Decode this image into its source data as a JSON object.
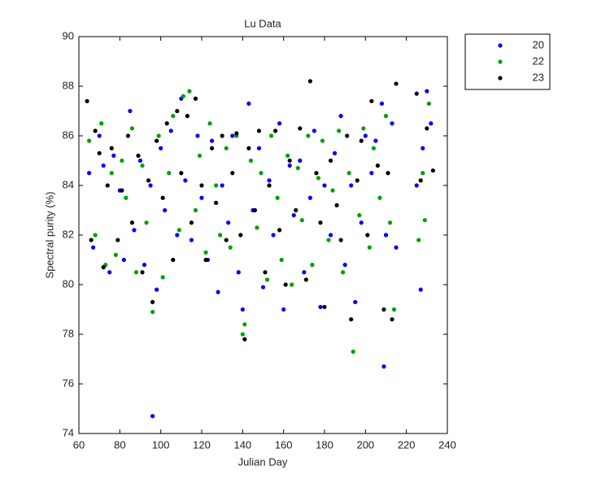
{
  "chart_data": {
    "type": "scatter",
    "title": "Lu Data",
    "x_label": "Julian Day",
    "y_label": "Spectral purity (%)",
    "xlim": [
      60,
      240
    ],
    "ylim": [
      74,
      90
    ],
    "xticks": [
      60,
      80,
      100,
      120,
      140,
      160,
      180,
      200,
      220,
      240
    ],
    "yticks": [
      74,
      76,
      78,
      80,
      82,
      84,
      86,
      88,
      90
    ],
    "grid": false,
    "legend_loc": "northeastoutside",
    "series": [
      {
        "name": "20",
        "color": "#0000ff",
        "x": [
          65,
          67,
          70,
          72,
          75,
          77,
          80,
          82,
          85,
          87,
          90,
          92,
          95,
          96,
          98,
          100,
          102,
          105,
          108,
          110,
          112,
          115,
          118,
          120,
          123,
          125,
          128,
          130,
          133,
          135,
          138,
          140,
          143,
          145,
          148,
          150,
          153,
          155,
          158,
          160,
          163,
          165,
          168,
          170,
          173,
          175,
          178,
          180,
          183,
          185,
          188,
          190,
          193,
          195,
          198,
          200,
          203,
          205,
          208,
          209,
          210,
          213,
          215,
          225,
          227,
          228,
          230,
          232
        ],
        "values": [
          84.5,
          81.5,
          86,
          84.8,
          80.5,
          85.2,
          83.8,
          81,
          87,
          82.2,
          85,
          80.8,
          84,
          74.7,
          79.8,
          85.5,
          83,
          86.2,
          82,
          87.5,
          84.2,
          81.8,
          86,
          83.5,
          81,
          85.8,
          79.7,
          84,
          82.5,
          86,
          80.5,
          79,
          87.3,
          83,
          85.5,
          79.9,
          84.2,
          82,
          86.5,
          79,
          84.8,
          82.8,
          85,
          80.5,
          83.5,
          86.2,
          79.1,
          84,
          82,
          85.3,
          86.8,
          80.8,
          84,
          79.3,
          82.5,
          86,
          84.5,
          85.8,
          87.3,
          76.7,
          82,
          86.5,
          81.5,
          84,
          79.8,
          85.5,
          87.8,
          86.5
        ]
      },
      {
        "name": "22",
        "color": "#00a000",
        "x": [
          65,
          68,
          71,
          73,
          76,
          78,
          81,
          83,
          86,
          88,
          91,
          93,
          96,
          99,
          101,
          104,
          106,
          109,
          111,
          114,
          117,
          119,
          122,
          124,
          127,
          129,
          132,
          134,
          137,
          140,
          141,
          144,
          147,
          149,
          152,
          154,
          157,
          159,
          162,
          164,
          167,
          169,
          172,
          174,
          177,
          179,
          182,
          184,
          187,
          189,
          192,
          194,
          197,
          199,
          202,
          204,
          207,
          210,
          212,
          214,
          226,
          228,
          229,
          231
        ],
        "values": [
          85.8,
          82,
          86.5,
          80.8,
          84.5,
          81.2,
          85,
          83.5,
          86.3,
          80.5,
          84.8,
          82.5,
          78.9,
          86,
          80.3,
          84.5,
          86.8,
          82.2,
          87.6,
          87.8,
          83,
          85.2,
          81.3,
          86.5,
          84,
          82,
          85.5,
          81.5,
          86,
          78,
          78.4,
          85,
          82.3,
          84.5,
          80.2,
          86,
          83.5,
          81,
          85.2,
          80,
          84.7,
          82.6,
          86,
          80.8,
          84.3,
          85.8,
          81.8,
          83.8,
          86.2,
          80.5,
          84.5,
          77.3,
          82.8,
          86.3,
          81.5,
          85.5,
          83.5,
          86.8,
          82.5,
          79,
          81.8,
          84.5,
          82.6,
          87.3
        ]
      },
      {
        "name": "23",
        "color": "#000000",
        "x": [
          64,
          66,
          68,
          70,
          72,
          74,
          76,
          79,
          81,
          84,
          86,
          89,
          91,
          94,
          96,
          98,
          101,
          103,
          106,
          108,
          110,
          113,
          115,
          117,
          120,
          122,
          125,
          127,
          130,
          132,
          135,
          137,
          139,
          141,
          143,
          146,
          148,
          151,
          153,
          156,
          158,
          161,
          163,
          166,
          168,
          171,
          173,
          176,
          178,
          180,
          183,
          186,
          188,
          191,
          193,
          196,
          198,
          201,
          203,
          206,
          209,
          211,
          213,
          215,
          225,
          227,
          230,
          233
        ],
        "values": [
          87.4,
          81.8,
          86.2,
          85.3,
          80.7,
          84,
          85.5,
          81.8,
          83.8,
          86,
          82.5,
          85.2,
          80.5,
          84.2,
          79.3,
          85.8,
          83.5,
          86.5,
          81,
          87,
          84.5,
          86.8,
          82.5,
          87.5,
          84,
          81,
          85.5,
          83.3,
          86,
          81.8,
          84.5,
          86.1,
          82,
          77.8,
          85.5,
          83,
          86.2,
          80.5,
          84,
          86.2,
          82.2,
          80,
          85,
          83,
          86.3,
          80.2,
          88.2,
          84.5,
          82.5,
          79.1,
          85,
          83.2,
          81.8,
          86,
          78.6,
          84.2,
          85.8,
          82,
          87.4,
          84.8,
          79,
          84.5,
          78.6,
          88.1,
          87.7,
          84.2,
          86.3,
          84.6
        ]
      }
    ]
  }
}
